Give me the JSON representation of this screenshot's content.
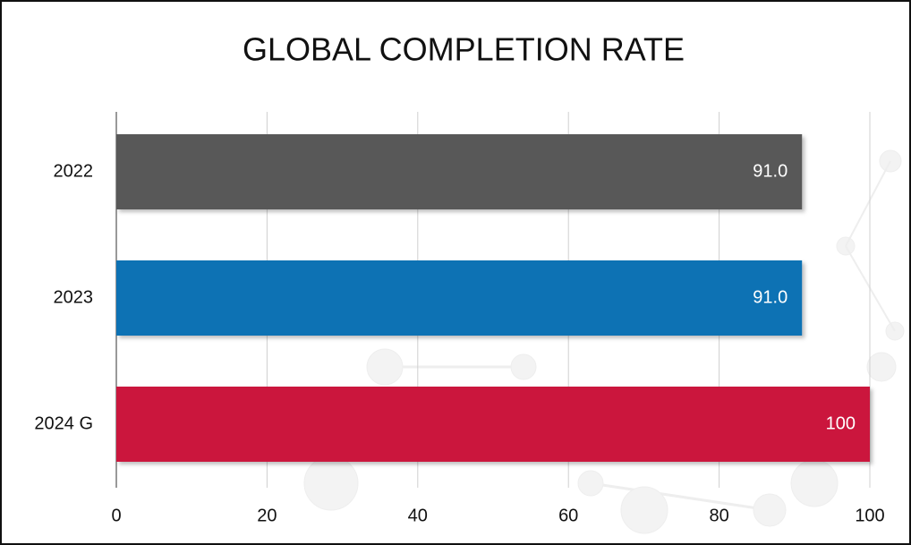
{
  "chart_data": {
    "type": "bar",
    "orientation": "horizontal",
    "title": "GLOBAL COMPLETION RATE",
    "categories": [
      "2022",
      "2023",
      "2024 G"
    ],
    "values": [
      91,
      91,
      100
    ],
    "value_labels": [
      "91.0",
      "91.0",
      "100"
    ],
    "colors": [
      "#595959",
      "#1172b4",
      "#cb163c"
    ],
    "xlim": [
      0,
      100
    ],
    "xticks": [
      0,
      20,
      40,
      60,
      80,
      100
    ],
    "grid": true
  }
}
